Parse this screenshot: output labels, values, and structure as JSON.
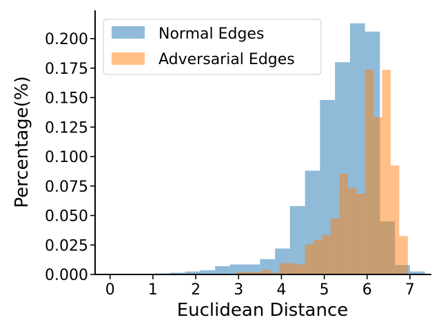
{
  "chart_data": {
    "type": "bar",
    "title": "",
    "xlabel": "Euclidean Distance",
    "ylabel": "Percentage(%)",
    "xlim": [
      -0.35,
      7.5
    ],
    "ylim": [
      0,
      0.224
    ],
    "xticks": [
      0,
      1,
      2,
      3,
      4,
      5,
      6,
      7
    ],
    "xtick_labels": [
      "0",
      "1",
      "2",
      "3",
      "4",
      "5",
      "6",
      "7"
    ],
    "yticks": [
      0.0,
      0.025,
      0.05,
      0.075,
      0.1,
      0.125,
      0.15,
      0.175,
      0.2
    ],
    "ytick_labels": [
      "0.000",
      "0.025",
      "0.050",
      "0.075",
      "0.100",
      "0.125",
      "0.150",
      "0.175",
      "0.200"
    ],
    "grid": false,
    "legend_position": "top-left",
    "alpha": 0.5,
    "series": [
      {
        "name": "Normal Edges",
        "color": "#1f77b4",
        "bins": [
          [
            0.0,
            0.35,
            0.0005
          ],
          [
            0.35,
            0.7,
            0.0005
          ],
          [
            0.7,
            1.05,
            0.0005
          ],
          [
            1.05,
            1.4,
            0.0008
          ],
          [
            1.4,
            1.75,
            0.0015
          ],
          [
            1.75,
            2.1,
            0.0025
          ],
          [
            2.1,
            2.45,
            0.0035
          ],
          [
            2.45,
            2.8,
            0.007
          ],
          [
            2.8,
            3.15,
            0.0085
          ],
          [
            3.15,
            3.5,
            0.0085
          ],
          [
            3.5,
            3.85,
            0.013
          ],
          [
            3.85,
            4.2,
            0.022
          ],
          [
            4.2,
            4.55,
            0.058
          ],
          [
            4.55,
            4.9,
            0.088
          ],
          [
            4.9,
            5.25,
            0.148
          ],
          [
            5.25,
            5.6,
            0.18
          ],
          [
            5.6,
            5.95,
            0.213
          ],
          [
            5.95,
            6.3,
            0.206
          ],
          [
            6.3,
            6.65,
            0.045
          ],
          [
            6.65,
            7.0,
            0.008
          ],
          [
            7.0,
            7.35,
            0.0025
          ]
        ]
      },
      {
        "name": "Adversarial Edges",
        "color": "#ff7f0e",
        "bins": [
          [
            2.95,
            3.15,
            0.002
          ],
          [
            3.15,
            3.35,
            0.002
          ],
          [
            3.35,
            3.55,
            0.002
          ],
          [
            3.55,
            3.75,
            0.004
          ],
          [
            3.75,
            3.95,
            0.0015
          ],
          [
            3.95,
            4.15,
            0.0095
          ],
          [
            4.15,
            4.35,
            0.0095
          ],
          [
            4.35,
            4.55,
            0.0085
          ],
          [
            4.55,
            4.75,
            0.0255
          ],
          [
            4.75,
            4.95,
            0.0295
          ],
          [
            4.95,
            5.15,
            0.0335
          ],
          [
            5.15,
            5.35,
            0.0475
          ],
          [
            5.35,
            5.55,
            0.0855
          ],
          [
            5.55,
            5.75,
            0.0735
          ],
          [
            5.75,
            5.95,
            0.0685
          ],
          [
            5.95,
            6.15,
            0.1735
          ],
          [
            6.15,
            6.35,
            0.1335
          ],
          [
            6.35,
            6.55,
            0.1735
          ],
          [
            6.55,
            6.75,
            0.0925
          ],
          [
            6.75,
            6.95,
            0.0325
          ]
        ]
      }
    ]
  }
}
